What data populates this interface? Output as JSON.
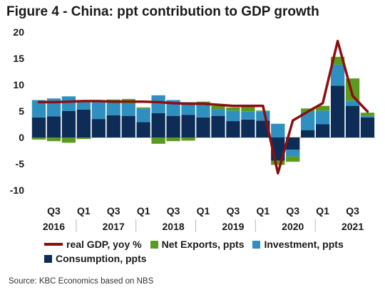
{
  "title": "Figure 4 - China: ppt contribution to GDP growth",
  "source": "Source: KBC Economics based on NBS",
  "colors": {
    "consumption": "#0d2d57",
    "investment": "#2f8fbf",
    "net_exports": "#5b9a1f",
    "gdp": "#8b0f0f"
  },
  "legend": {
    "gdp": "real GDP, yoy %",
    "net_exports": "Net Exports, ppts",
    "investment": "Investment, ppts",
    "consumption": "Consumption, ppts"
  },
  "chart_data": {
    "type": "bar",
    "stacked": true,
    "title": "Figure 4 - China: ppt contribution to GDP growth",
    "xlabel": "",
    "ylabel": "",
    "ylim": [
      -10,
      20
    ],
    "yticks": [
      -10,
      -5,
      0,
      5,
      10,
      15,
      20
    ],
    "grid": false,
    "legend_position": "bottom",
    "categories": [
      "2016Q2",
      "2016Q3",
      "2016Q4",
      "2017Q1",
      "2017Q2",
      "2017Q3",
      "2017Q4",
      "2018Q1",
      "2018Q2",
      "2018Q3",
      "2018Q4",
      "2019Q1",
      "2019Q2",
      "2019Q3",
      "2019Q4",
      "2020Q1",
      "2020Q2",
      "2020Q3",
      "2020Q4",
      "2021Q1",
      "2021Q2",
      "2021Q3",
      "2021Q4"
    ],
    "x_tick_labels": [
      {
        "quarter": "Q3",
        "year": "2016"
      },
      {
        "quarter": "Q1",
        "year": ""
      },
      {
        "quarter": "Q3",
        "year": "2017"
      },
      {
        "quarter": "Q1",
        "year": ""
      },
      {
        "quarter": "Q3",
        "year": "2018"
      },
      {
        "quarter": "Q1",
        "year": ""
      },
      {
        "quarter": "Q3",
        "year": "2019"
      },
      {
        "quarter": "Q1",
        "year": ""
      },
      {
        "quarter": "Q3",
        "year": "2020"
      },
      {
        "quarter": "Q1",
        "year": ""
      },
      {
        "quarter": "Q3",
        "year": "2021"
      }
    ],
    "series": [
      {
        "name": "Consumption, ppts",
        "kind": "bar",
        "values": [
          3.8,
          4.0,
          5.0,
          5.3,
          3.5,
          4.2,
          4.1,
          2.9,
          4.6,
          4.1,
          4.3,
          3.8,
          4.1,
          3.1,
          3.4,
          3.2,
          -4.4,
          -2.3,
          1.4,
          2.5,
          9.8,
          6.0,
          3.8
        ]
      },
      {
        "name": "Investment, ppts",
        "kind": "bar",
        "values": [
          3.3,
          3.4,
          2.8,
          1.8,
          3.3,
          2.8,
          2.4,
          2.6,
          3.4,
          3.0,
          2.4,
          2.4,
          1.3,
          2.0,
          1.5,
          1.7,
          2.6,
          -1.3,
          3.4,
          2.6,
          4.0,
          1.0,
          0.3
        ]
      },
      {
        "name": "Net Exports, ppts",
        "kind": "bar",
        "values": [
          -0.4,
          -0.7,
          -1.0,
          -0.3,
          0.1,
          0.2,
          0.8,
          0.2,
          -1.2,
          -0.7,
          -0.6,
          0.6,
          0.6,
          0.6,
          1.1,
          0.2,
          -0.8,
          -1.0,
          0.7,
          0.9,
          1.5,
          4.2,
          0.6
        ]
      },
      {
        "name": "real GDP, yoy %",
        "kind": "line",
        "values": [
          6.7,
          6.7,
          6.8,
          6.9,
          6.9,
          6.8,
          6.8,
          6.8,
          6.7,
          6.5,
          6.4,
          6.4,
          6.2,
          6.0,
          6.0,
          6.0,
          -6.8,
          3.2,
          4.9,
          6.5,
          18.3,
          7.9,
          4.9
        ]
      }
    ]
  }
}
